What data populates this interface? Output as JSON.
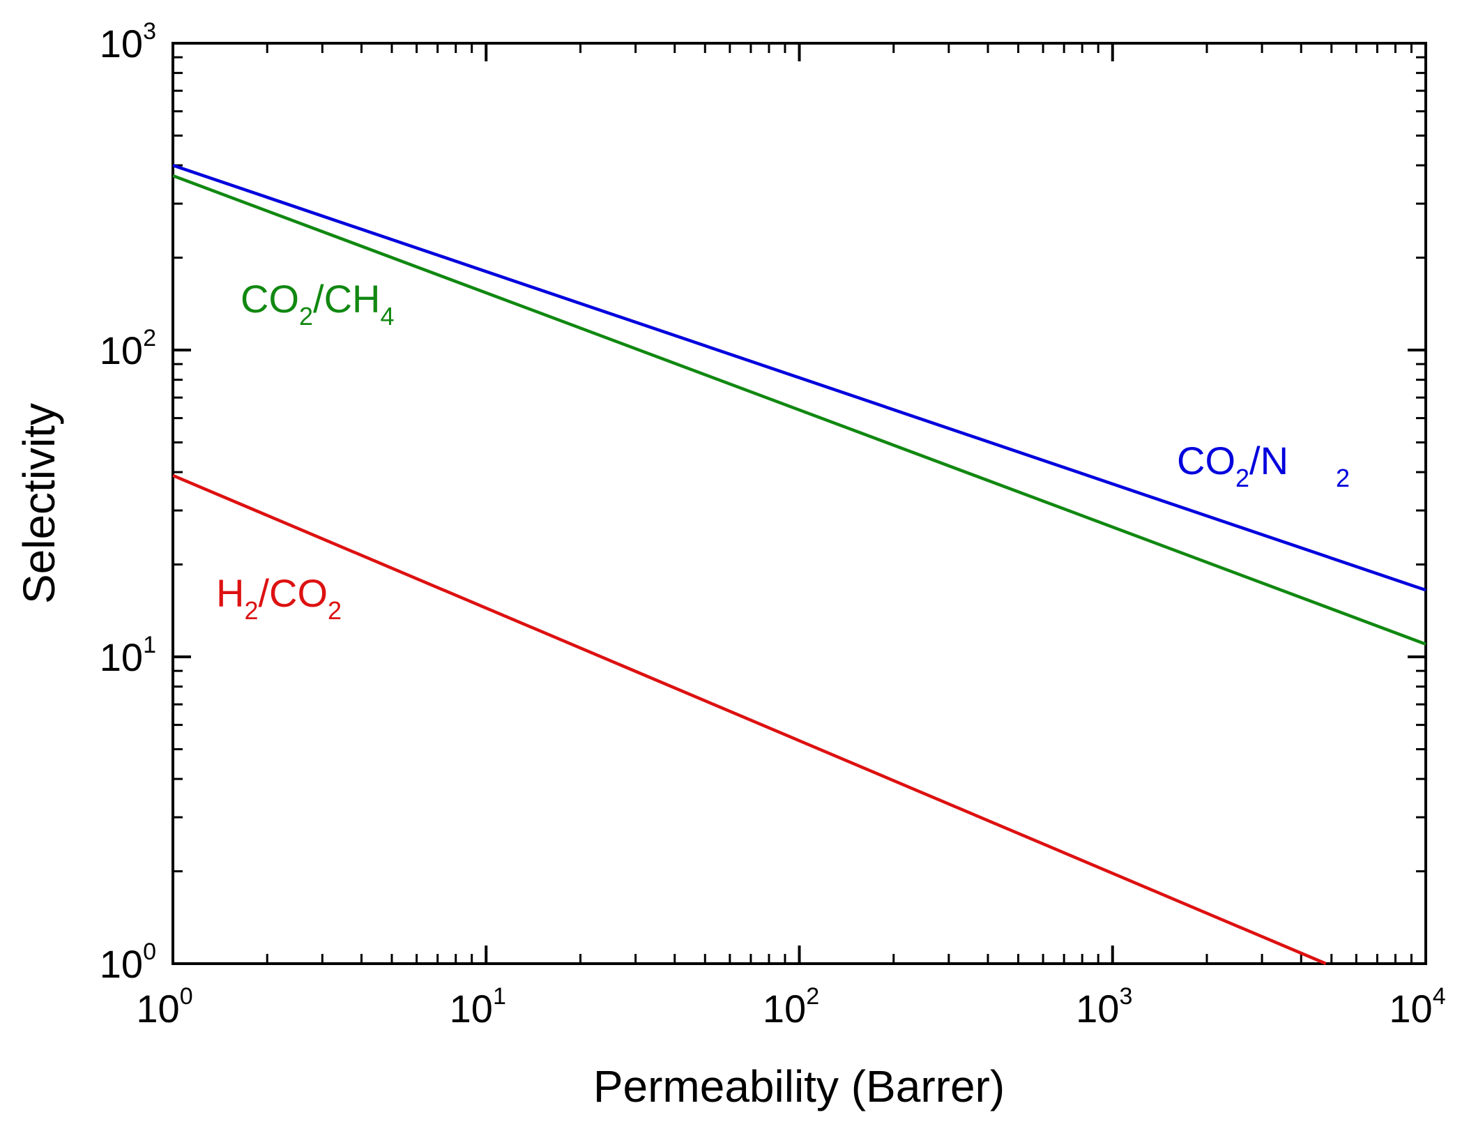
{
  "chart_data": {
    "type": "line",
    "xlabel": "Permeability (Barrer)",
    "ylabel": "Selectivity",
    "xscale": "log",
    "yscale": "log",
    "xlim": [
      1,
      10000
    ],
    "ylim": [
      1,
      1000
    ],
    "grid": false,
    "x_ticks": [
      {
        "base": "10",
        "exp": "0",
        "value": 1
      },
      {
        "base": "10",
        "exp": "1",
        "value": 10
      },
      {
        "base": "10",
        "exp": "2",
        "value": 100
      },
      {
        "base": "10",
        "exp": "3",
        "value": 1000
      },
      {
        "base": "10",
        "exp": "4",
        "value": 10000
      }
    ],
    "y_ticks": [
      {
        "base": "10",
        "exp": "0",
        "value": 1
      },
      {
        "base": "10",
        "exp": "1",
        "value": 10
      },
      {
        "base": "10",
        "exp": "2",
        "value": 100
      },
      {
        "base": "10",
        "exp": "3",
        "value": 1000
      }
    ],
    "series": [
      {
        "name": "CO2/N2",
        "label_main": "CO",
        "label_sub1": "2",
        "label_mid": "/N",
        "label_sub2": "2",
        "color": "#0000dd",
        "x": [
          1,
          10000
        ],
        "y": [
          400,
          16.5
        ]
      },
      {
        "name": "CO2/CH4",
        "label_main": "CO",
        "label_sub1": "2",
        "label_mid": "/CH",
        "label_sub2": "4",
        "color": "#118811",
        "x": [
          1,
          10000
        ],
        "y": [
          370,
          11
        ]
      },
      {
        "name": "H2/CO2",
        "label_main": "H",
        "label_sub1": "2",
        "label_mid": "/CO",
        "label_sub2": "2",
        "color": "#dd1111",
        "x": [
          1,
          4800
        ],
        "y": [
          39,
          1
        ]
      }
    ]
  }
}
